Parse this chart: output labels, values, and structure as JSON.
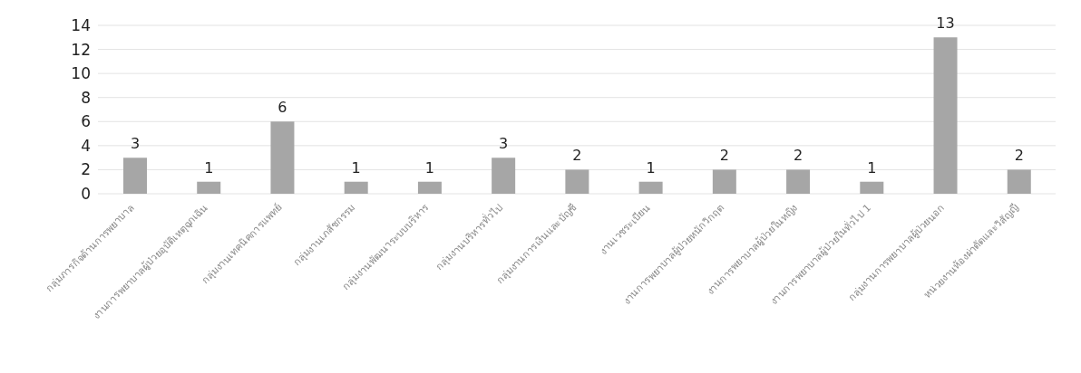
{
  "chart_data": {
    "type": "bar",
    "categories": [
      "กลุ่มภารกิจด้านการพยาบาล",
      "งานการพยาบาลผู้ป่วยอุบัติเหตุฉุกเฉิน",
      "กลุ่มงานเทคนิคการแพทย์",
      "กลุ่มงานเภสัชกรรม",
      "กลุ่มงานพัฒนาระบบบริหาร",
      "กลุ่มงานบริหารทั่วไป",
      "กลุ่มงานการเงินและบัญชี",
      "งานเวชระเบียน",
      "งานการพยาบาลผู้ป่วยหนักวิกฤต",
      "งานการพยาบาลผู้ป่วยในหญิง",
      "งานการพยาบาลผู้ป่วยในทั่วไป 1",
      "กลุ่มงานการพยาบาลผู้ป่วยนอก",
      "หน่วยงานห้องผ่าตัดและวิสัญญี"
    ],
    "values": [
      3,
      1,
      6,
      1,
      1,
      3,
      2,
      1,
      2,
      2,
      1,
      13,
      2
    ],
    "color": "#a6a6a6",
    "ylim": [
      0,
      14
    ],
    "yticks": [
      0,
      2,
      4,
      6,
      8,
      10,
      12,
      14
    ],
    "grid": "y",
    "data_labels": true
  }
}
